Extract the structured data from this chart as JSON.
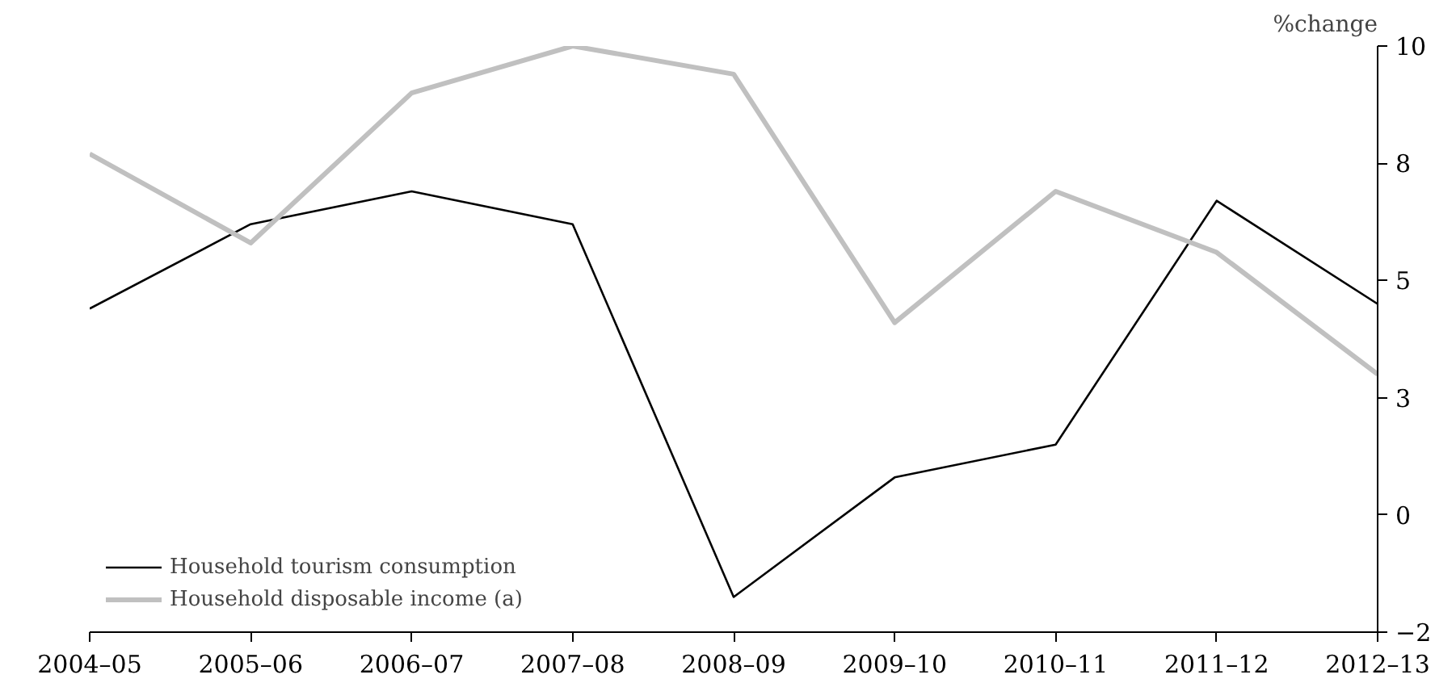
{
  "chart_data": {
    "type": "line",
    "ylabel": "%change",
    "categories": [
      "2004–05",
      "2005–06",
      "2006–07",
      "2007–08",
      "2008–09",
      "2009–10",
      "2010–11",
      "2011–12",
      "2012–13"
    ],
    "series": [
      {
        "name": "Household tourism consumption",
        "color": "#000000",
        "values": [
          4.4,
          6.2,
          6.9,
          6.2,
          -1.75,
          0.8,
          1.5,
          6.7,
          4.5
        ]
      },
      {
        "name": "Household disposable income (a)",
        "color": "#c0c0c0",
        "values": [
          7.7,
          5.8,
          9.0,
          10.0,
          9.4,
          4.1,
          6.9,
          5.6,
          3.0
        ]
      }
    ],
    "ylim": [
      -2.5,
      10
    ],
    "yticks": [
      {
        "value": -2.5,
        "label": "−2"
      },
      0,
      {
        "value": 2.5,
        "label": "3"
      },
      5,
      {
        "value": 7.5,
        "label": "8"
      },
      10
    ],
    "grid": false,
    "legend": "bottom left"
  }
}
